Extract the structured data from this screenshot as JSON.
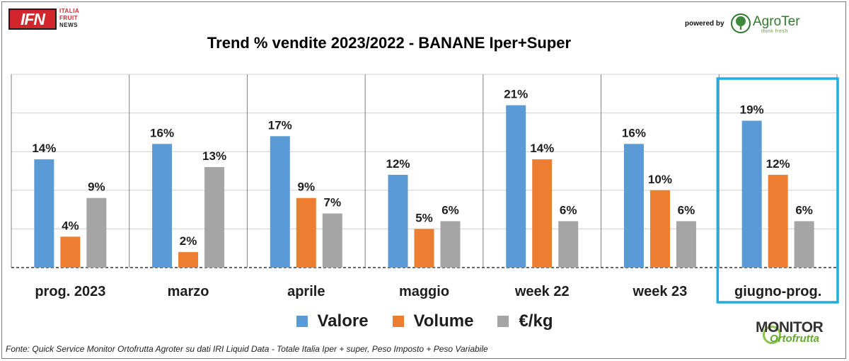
{
  "header": {
    "logo_text": "IFN",
    "logo_lines": [
      "ITALIA",
      "FRUIT",
      "NEWS"
    ],
    "powered_by": "powered by",
    "brand_name": "AgroTer",
    "brand_tagline": "think fresh"
  },
  "colors": {
    "valore": "#5b9bd5",
    "volume": "#ed7d31",
    "prezzo": "#a5a5a5",
    "highlight": "#1eaee3",
    "logo_red": "#d3262c"
  },
  "chart_data": {
    "type": "bar",
    "title": "Trend % vendite 2023/2022 - BANANE Iper+Super",
    "categories": [
      "prog. 2023",
      "marzo",
      "aprile",
      "maggio",
      "week 22",
      "week 23",
      "giugno-prog."
    ],
    "series": [
      {
        "name": "Valore",
        "values": [
          14,
          16,
          17,
          12,
          21,
          16,
          19
        ]
      },
      {
        "name": "Volume",
        "values": [
          4,
          2,
          9,
          5,
          14,
          10,
          12
        ]
      },
      {
        "name": "€/kg",
        "values": [
          9,
          13,
          7,
          6,
          6,
          6,
          6
        ]
      }
    ],
    "data_labels": [
      [
        "14%",
        "16%",
        "17%",
        "12%",
        "21%",
        "16%",
        "19%"
      ],
      [
        "4%",
        "2%",
        "9%",
        "5%",
        "14%",
        "10%",
        "12%"
      ],
      [
        "9%",
        "13%",
        "7%",
        "6%",
        "6%",
        "6%",
        "6%"
      ]
    ],
    "ylim": [
      0,
      25
    ],
    "grid": true,
    "legend_position": "bottom",
    "highlighted_category": "giugno-prog."
  },
  "footer": {
    "source": "Fonte: Quick Service Monitor Ortofrutta Agroter su dati IRI Liquid Data - Totale Italia Iper + super, Peso Imposto + Peso Variabile",
    "monitor_top": "MONITOR",
    "monitor_bottom": "Ortofrutta"
  }
}
